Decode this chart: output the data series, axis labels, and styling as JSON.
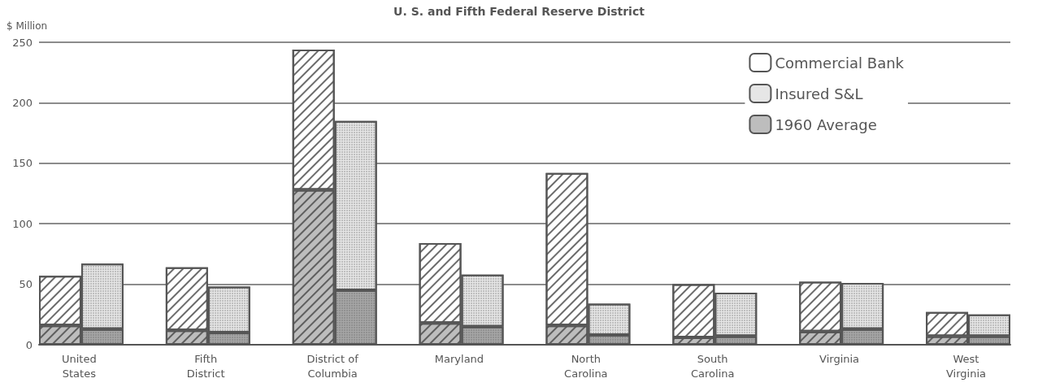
{
  "chart_data": {
    "type": "bar",
    "title": "U. S. and Fifth Federal Reserve District",
    "ylabel": "$ Million",
    "categories": [
      "United\nStates",
      null,
      null,
      "Fifth\nDistrict",
      null,
      null,
      "District of\nColumbia",
      null,
      null,
      "Maryland",
      null,
      null,
      "North\nCarolina",
      null,
      null,
      "South\nCarolina",
      null,
      null,
      "Virginia",
      null,
      null,
      "West\nVirginia",
      null
    ],
    "stacked": true,
    "series": [
      {
        "name": "1960 Average",
        "color": "#bdbdbd",
        "colors": [
          "#bdbdbd",
          "#a6a6a6",
          null,
          "#bdbdbd",
          "#a6a6a6",
          null,
          "#bdbdbd",
          "#a6a6a6",
          null,
          "#bdbdbd",
          "#a6a6a6",
          null,
          "#bdbdbd",
          "#a6a6a6",
          null,
          "#bdbdbd",
          "#a6a6a6",
          null,
          "#bdbdbd",
          "#a6a6a6",
          null,
          "#bdbdbd",
          "#a6a6a6"
        ],
        "values": [
          16,
          13,
          null,
          12,
          10,
          null,
          128,
          45,
          null,
          18,
          15,
          null,
          16,
          8,
          null,
          6,
          7,
          null,
          11,
          13,
          null,
          7,
          7
        ]
      },
      {
        "name": "Commercial Bank",
        "color": "#ffffff",
        "values": [
          41,
          null,
          null,
          52,
          null,
          null,
          116,
          null,
          null,
          66,
          null,
          null,
          126,
          null,
          null,
          44,
          null,
          null,
          41,
          null,
          null,
          20,
          null
        ]
      },
      {
        "name": "Insured S&L",
        "color": "#e6e6e6",
        "values": [
          null,
          54,
          null,
          null,
          38,
          null,
          null,
          140,
          null,
          null,
          43,
          null,
          null,
          26,
          null,
          null,
          36,
          null,
          null,
          38,
          null,
          null,
          18
        ]
      }
    ],
    "ylim": [
      0,
      250
    ],
    "yticks": [
      0,
      50,
      100,
      150,
      200,
      250
    ],
    "grid": "y",
    "legend": "top right"
  }
}
